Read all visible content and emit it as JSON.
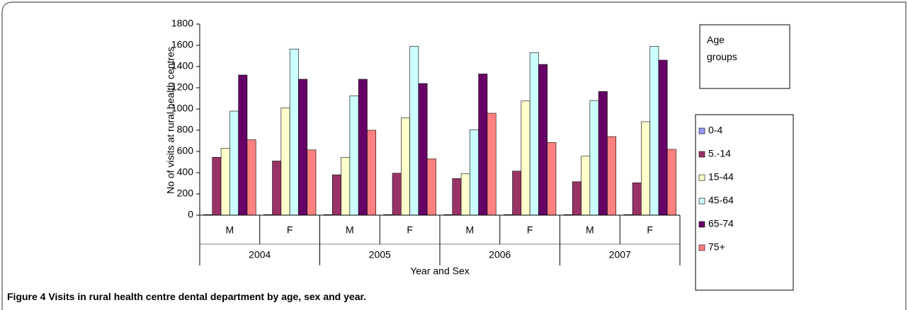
{
  "chart_data": {
    "type": "bar",
    "caption_label": "Figure 4",
    "caption": "Visits in rural health centre dental department by age, sex and year.",
    "y_label": "No of visits at rural health centres",
    "x_label": "Year and Sex",
    "legend_title": "Age groups",
    "categories": [
      "M",
      "F",
      "M",
      "F",
      "M",
      "F",
      "M",
      "F"
    ],
    "category_groups": [
      "2004",
      "2005",
      "2006",
      "2007"
    ],
    "series": [
      {
        "name": "0-4",
        "color": "#9999ff",
        "values": [
          5,
          5,
          5,
          5,
          5,
          5,
          5,
          5
        ]
      },
      {
        "name": "5.-14",
        "color": "#993366",
        "values": [
          545,
          510,
          380,
          395,
          345,
          415,
          315,
          305
        ]
      },
      {
        "name": "15-44",
        "color": "#ffffcc",
        "values": [
          630,
          1010,
          545,
          915,
          390,
          1075,
          555,
          880
        ]
      },
      {
        "name": "45-64",
        "color": "#ccffff",
        "values": [
          980,
          1565,
          1125,
          1590,
          805,
          1530,
          1080,
          1590
        ]
      },
      {
        "name": "65-74",
        "color": "#660066",
        "values": [
          1320,
          1280,
          1280,
          1240,
          1330,
          1420,
          1165,
          1460
        ]
      },
      {
        "name": "75+",
        "color": "#ff8080",
        "values": [
          710,
          615,
          800,
          530,
          960,
          685,
          740,
          620
        ]
      }
    ],
    "ylim": [
      0,
      1800
    ],
    "yticks": [
      0,
      200,
      400,
      600,
      800,
      1000,
      1200,
      1400,
      1600,
      1800
    ],
    "grid": false
  }
}
